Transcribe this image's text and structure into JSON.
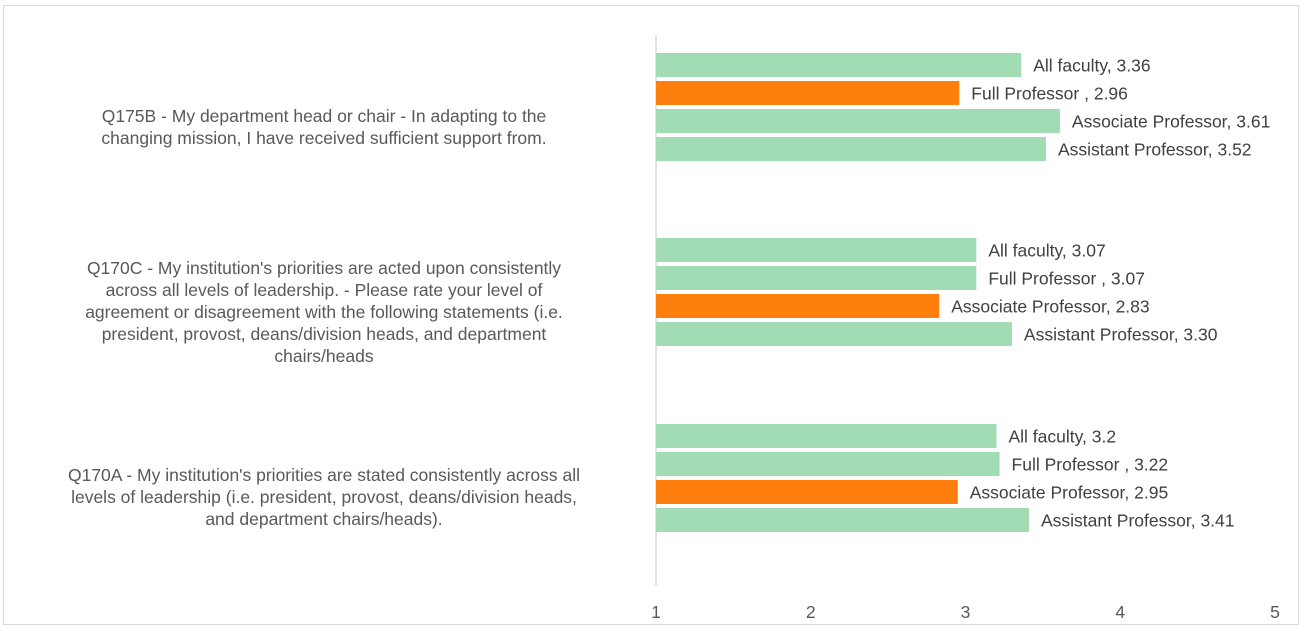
{
  "chart_data": {
    "type": "bar",
    "orientation": "horizontal",
    "xlim": [
      1,
      5
    ],
    "xticks": [
      "1",
      "2",
      "3",
      "4",
      "5"
    ],
    "colors": {
      "default": "#a1dcb4",
      "highlight": "#ff7f0e",
      "axis": "#d9d9d9",
      "label": "#404040"
    },
    "groups": [
      {
        "category": "Q175B - My department head or chair - In adapting to the changing mission, I have received sufficient support from.",
        "lines": [
          "Q175B - My department head or chair - In adapting to the",
          "changing mission, I have received sufficient support from."
        ],
        "bars": [
          {
            "name": "All faculty",
            "value": 3.36,
            "label": "All faculty, 3.36",
            "highlight": false
          },
          {
            "name": "Full Professor",
            "value": 2.96,
            "label": "Full Professor , 2.96",
            "highlight": true
          },
          {
            "name": "Associate Professor",
            "value": 3.61,
            "label": "Associate Professor, 3.61",
            "highlight": false
          },
          {
            "name": "Assistant Professor",
            "value": 3.52,
            "label": "Assistant Professor, 3.52",
            "highlight": false
          }
        ]
      },
      {
        "category": "Q170C - My institution's priorities are acted upon consistently across all levels of leadership. - Please rate your level of agreement or disagreement with the following statements (i.e. president, provost, deans/division heads, and department chairs/heads",
        "lines": [
          "Q170C - My institution's priorities are acted upon consistently",
          "across all levels of leadership. - Please rate your level of",
          "agreement or disagreement with the following statements (i.e.",
          "president, provost, deans/division heads, and department",
          "chairs/heads"
        ],
        "bars": [
          {
            "name": "All faculty",
            "value": 3.07,
            "label": "All faculty, 3.07",
            "highlight": false
          },
          {
            "name": "Full Professor",
            "value": 3.07,
            "label": "Full Professor , 3.07",
            "highlight": false
          },
          {
            "name": "Associate Professor",
            "value": 2.83,
            "label": "Associate Professor, 2.83",
            "highlight": true
          },
          {
            "name": "Assistant Professor",
            "value": 3.3,
            "label": "Assistant Professor, 3.30",
            "highlight": false
          }
        ]
      },
      {
        "category": "Q170A - My institution's priorities are stated consistently across all levels of leadership (i.e. president, provost, deans/division heads, and department chairs/heads).",
        "lines": [
          "Q170A - My institution's priorities are stated consistently across all",
          "levels of leadership (i.e. president, provost, deans/division heads,",
          "and department chairs/heads)."
        ],
        "bars": [
          {
            "name": "All faculty",
            "value": 3.2,
            "label": "All faculty, 3.2",
            "highlight": false
          },
          {
            "name": "Full Professor",
            "value": 3.22,
            "label": "Full Professor , 3.22",
            "highlight": false
          },
          {
            "name": "Associate Professor",
            "value": 2.95,
            "label": "Associate Professor, 2.95",
            "highlight": true
          },
          {
            "name": "Assistant Professor",
            "value": 3.41,
            "label": "Assistant Professor, 3.41",
            "highlight": false
          }
        ]
      }
    ]
  }
}
